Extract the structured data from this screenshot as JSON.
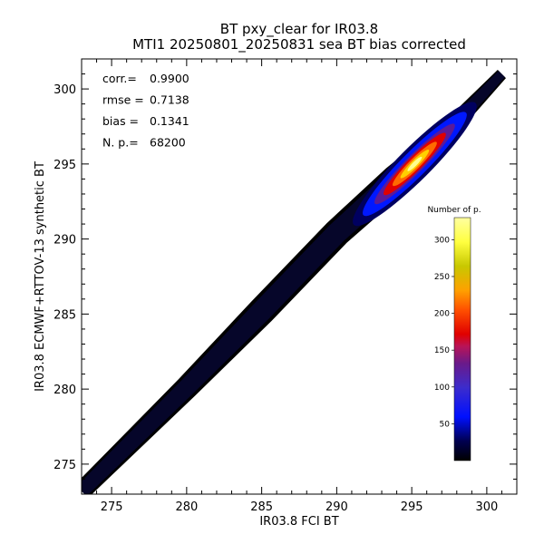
{
  "chart_data": {
    "type": "heatmap",
    "title": "BT pxy_clear for IR03.8",
    "subtitle": "MTI1 20250801_20250831 sea BT bias corrected",
    "xlabel": "IR03.8 FCI BT",
    "ylabel": "IR03.8 ECMWF+RTTOV-13 synthetic BT",
    "xlim": [
      273,
      302
    ],
    "ylim": [
      273,
      302
    ],
    "x_ticks": [
      275,
      280,
      285,
      290,
      295,
      300
    ],
    "y_ticks": [
      275,
      280,
      285,
      290,
      295,
      300
    ],
    "grid": false,
    "stats": [
      {
        "label": "corr.=",
        "value": "0.9900"
      },
      {
        "label": "rmse =",
        "value": "0.7138"
      },
      {
        "label": "bias =",
        "value": "0.1341"
      },
      {
        "label": "N. p.=",
        "value": "68200"
      }
    ],
    "density_ridge": {
      "x": [
        273,
        280,
        285,
        290,
        294,
        295,
        296,
        297,
        301
      ],
      "y": [
        273.2,
        280.1,
        285.2,
        290.4,
        294.0,
        294.9,
        295.9,
        296.8,
        301.0
      ],
      "width_k": [
        0.8,
        1.0,
        1.2,
        1.2,
        1.3,
        1.2,
        1.1,
        0.8,
        0.5
      ]
    },
    "density_peak": {
      "x": 295.2,
      "y": 295.0,
      "count": 320
    },
    "colorbar": {
      "title": "Number of p.",
      "range": [
        0,
        330
      ],
      "ticks": [
        50,
        100,
        150,
        200,
        250,
        300
      ],
      "location": "right-inside"
    },
    "colors": {
      "background": "#000000",
      "axis": "#000000"
    }
  }
}
